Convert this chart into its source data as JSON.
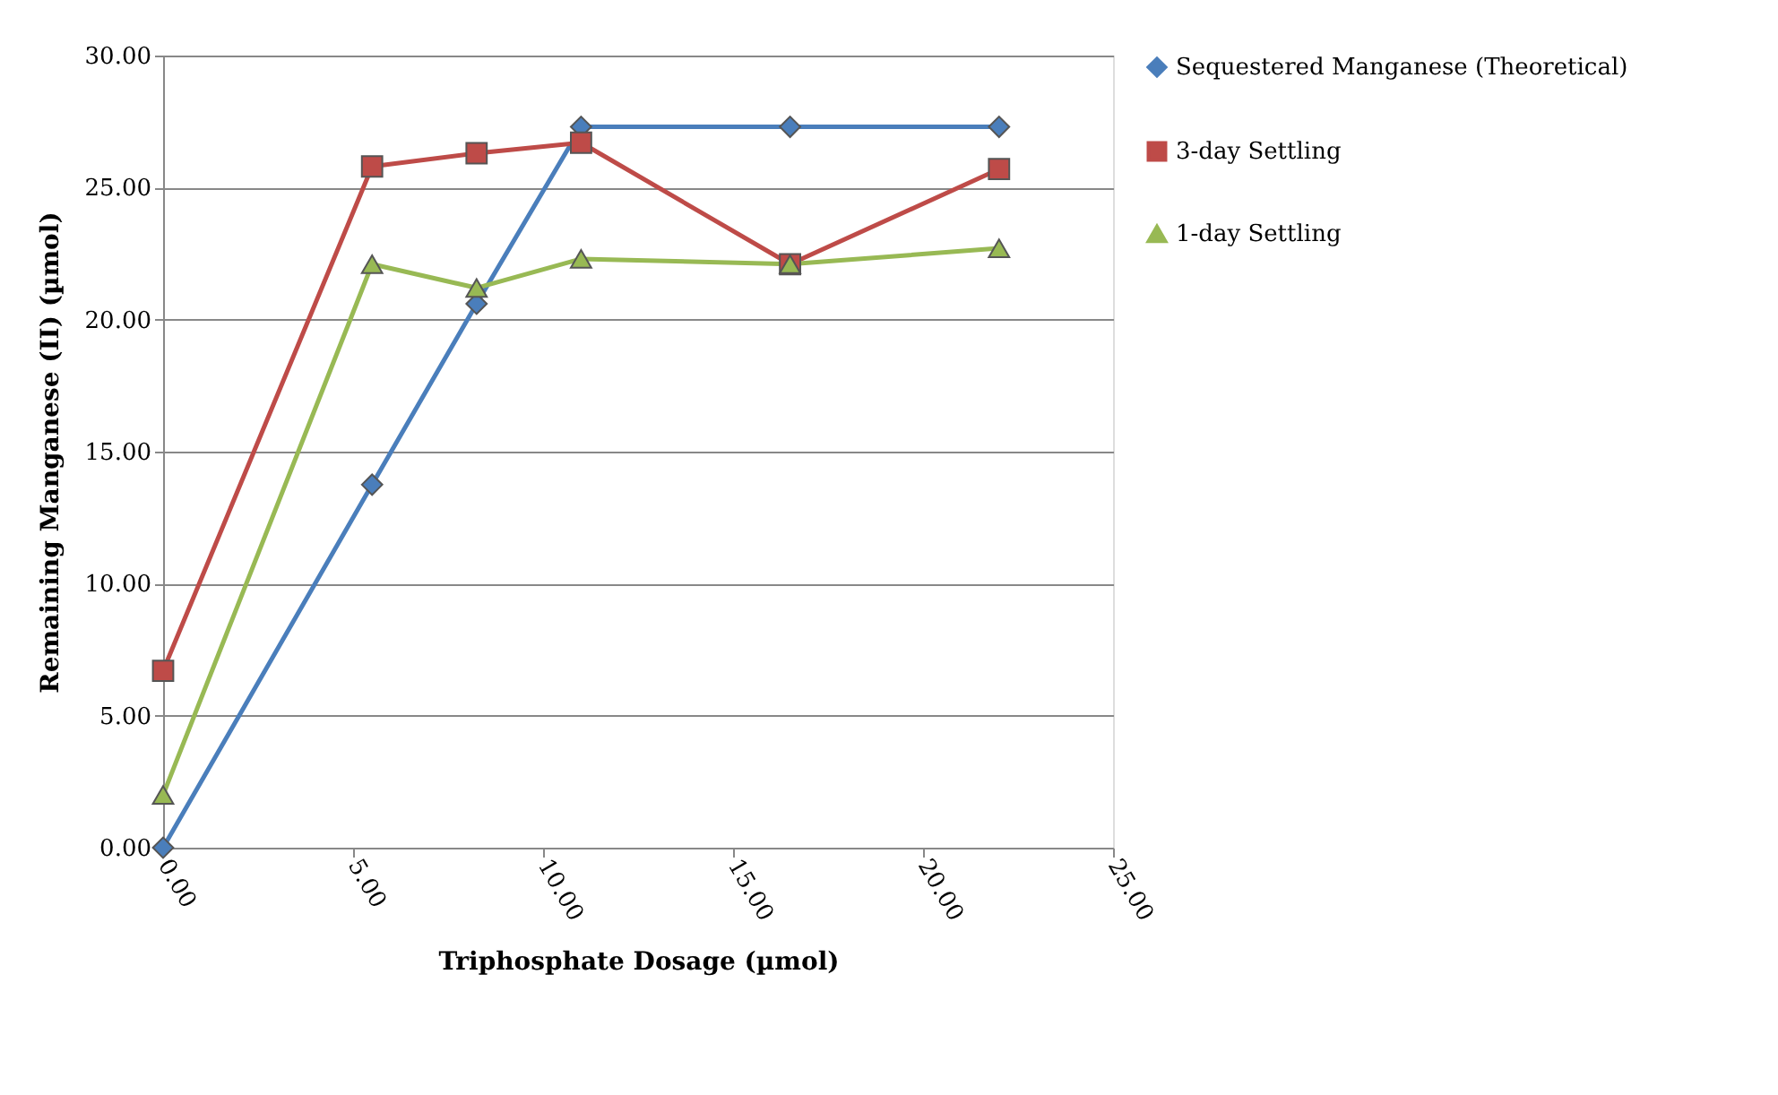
{
  "chart_data": {
    "type": "line",
    "xlabel": "Triphosphate Dosage (µmol)",
    "ylabel": "Remaining Manganese (II)  (µmol)",
    "x": [
      0,
      5.5,
      8.25,
      11,
      16.5,
      22
    ],
    "series": [
      {
        "name": "Sequestered Manganese (Theoretical)",
        "color": "#4a7ebb",
        "marker": "diamond",
        "values": [
          0,
          13.75,
          20.6,
          27.3,
          27.3,
          27.3
        ]
      },
      {
        "name": "3-day Settling",
        "color": "#be4b48",
        "marker": "square",
        "values": [
          6.7,
          25.8,
          26.3,
          26.7,
          22.1,
          25.7
        ]
      },
      {
        "name": "1-day Settling",
        "color": "#98b954",
        "marker": "triangle",
        "values": [
          2.0,
          22.1,
          21.2,
          22.3,
          22.1,
          22.7
        ]
      }
    ],
    "xlim": [
      0,
      25
    ],
    "xticks": [
      {
        "value": 0,
        "label": "0.00"
      },
      {
        "value": 5,
        "label": "5.00"
      },
      {
        "value": 10,
        "label": "10.00"
      },
      {
        "value": 15,
        "label": "15.00"
      },
      {
        "value": 20,
        "label": "20.00"
      },
      {
        "value": 25,
        "label": "25.00"
      }
    ],
    "ylim": [
      0,
      30
    ],
    "yticks": [
      {
        "value": 0,
        "label": "0.00"
      },
      {
        "value": 5,
        "label": "5.00"
      },
      {
        "value": 10,
        "label": "10.00"
      },
      {
        "value": 15,
        "label": "15.00"
      },
      {
        "value": 20,
        "label": "20.00"
      },
      {
        "value": 25,
        "label": "25.00"
      },
      {
        "value": 30,
        "label": "30.00"
      }
    ],
    "grid": "y",
    "legend": "right",
    "line_style": "solid"
  }
}
